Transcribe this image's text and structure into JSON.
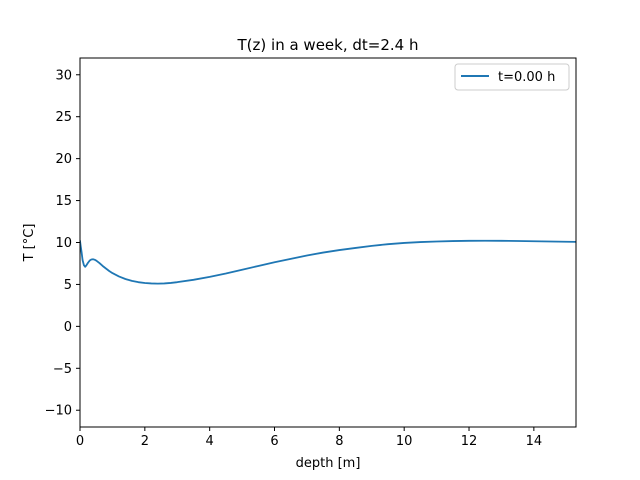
{
  "chart_data": {
    "type": "line",
    "title": "T(z) in a week, dt=2.4 h",
    "xlabel": "depth [m]",
    "ylabel": "T [°C]",
    "xlim": [
      0,
      15.3
    ],
    "ylim": [
      -12,
      32
    ],
    "xticks": [
      0,
      2,
      4,
      6,
      8,
      10,
      12,
      14
    ],
    "yticks": [
      -10,
      -5,
      0,
      5,
      10,
      15,
      20,
      25,
      30
    ],
    "tick_labels": {
      "x": [
        "0",
        "2",
        "4",
        "6",
        "8",
        "10",
        "12",
        "14"
      ],
      "y": [
        "−10",
        "−5",
        "0",
        "5",
        "10",
        "15",
        "20",
        "25",
        "30"
      ]
    },
    "grid": false,
    "legend": "top-right",
    "series": [
      {
        "name": "t=0.00 h",
        "color": "#1f77b4",
        "x": [
          0,
          0.02,
          0.05,
          0.08,
          0.12,
          0.16,
          0.2,
          0.25,
          0.3,
          0.35,
          0.4,
          0.45,
          0.5,
          0.55,
          0.6,
          0.7,
          0.8,
          0.9,
          1.0,
          1.2,
          1.4,
          1.6,
          1.8,
          2.0,
          2.2,
          2.4,
          2.6,
          2.8,
          3.0,
          3.5,
          4.0,
          4.5,
          5.0,
          5.5,
          6.0,
          6.5,
          7.0,
          7.5,
          8.0,
          8.5,
          9.0,
          9.5,
          10.0,
          10.5,
          11.0,
          11.5,
          12.0,
          12.5,
          13.0,
          13.5,
          14.0,
          14.5,
          15.0,
          15.3
        ],
        "y": [
          10.2,
          9.6,
          8.8,
          7.9,
          7.3,
          7.1,
          7.3,
          7.6,
          7.85,
          7.97,
          8.0,
          7.95,
          7.85,
          7.7,
          7.55,
          7.2,
          6.9,
          6.6,
          6.35,
          5.95,
          5.65,
          5.42,
          5.27,
          5.17,
          5.12,
          5.1,
          5.12,
          5.18,
          5.27,
          5.55,
          5.9,
          6.3,
          6.75,
          7.2,
          7.65,
          8.05,
          8.45,
          8.8,
          9.1,
          9.35,
          9.6,
          9.8,
          9.95,
          10.05,
          10.12,
          10.17,
          10.2,
          10.21,
          10.2,
          10.18,
          10.15,
          10.12,
          10.09,
          10.07
        ]
      }
    ]
  }
}
